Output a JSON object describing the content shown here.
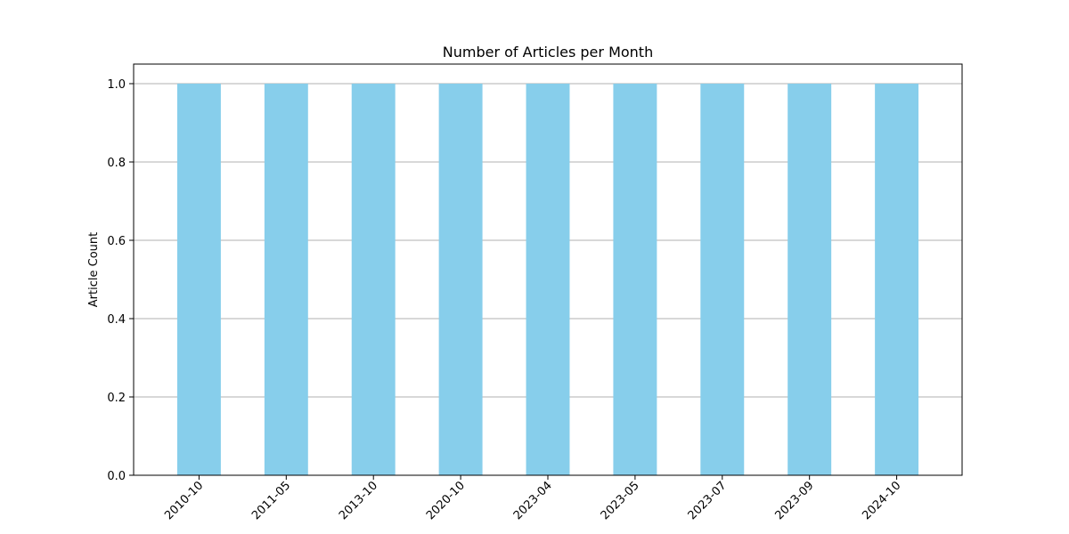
{
  "chart_data": {
    "type": "bar",
    "title": "Number of Articles per Month",
    "xlabel": "",
    "ylabel": "Article Count",
    "categories": [
      "2010-10",
      "2011-05",
      "2013-10",
      "2020-10",
      "2023-04",
      "2023-05",
      "2023-07",
      "2023-09",
      "2024-10"
    ],
    "values": [
      1,
      1,
      1,
      1,
      1,
      1,
      1,
      1,
      1
    ],
    "ylim": [
      0,
      1.05
    ],
    "yticks": [
      "0.0",
      "0.2",
      "0.4",
      "0.6",
      "0.8",
      "1.0"
    ],
    "grid": "y",
    "bar_color": "#87CEEB",
    "grid_color": "#b0b0b0"
  }
}
